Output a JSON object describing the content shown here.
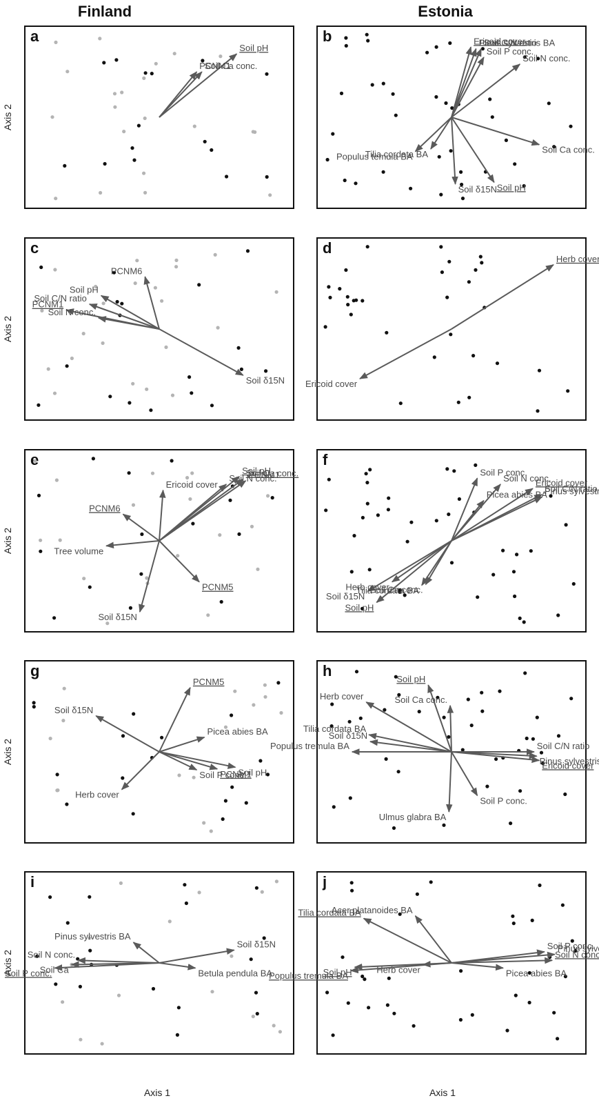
{
  "headers": {
    "left": "Finland",
    "right": "Estonia"
  },
  "axis_labels": {
    "y": "Axis 2",
    "x": "Axis 1"
  },
  "colors": {
    "arrow": "#5a5a5a",
    "label": "#4a4a4a",
    "dot_dark": "#111111",
    "dot_light": "#b4b4b4",
    "frame": "#111111"
  },
  "chart_data": [
    {
      "type": "scatter",
      "letter": "a",
      "country": "Finland",
      "xlim": [
        -1,
        1
      ],
      "ylim": [
        -1,
        1
      ],
      "arrows": [
        {
          "label": "Soil pH",
          "underline": true,
          "x": 0.6,
          "y": 0.74
        },
        {
          "label": "PCNM1",
          "underline": false,
          "x": 0.29,
          "y": 0.53
        },
        {
          "label": "Soil Ca conc.",
          "underline": false,
          "x": 0.33,
          "y": 0.53
        }
      ]
    },
    {
      "type": "scatter",
      "letter": "b",
      "country": "Estonia",
      "xlim": [
        -1,
        1
      ],
      "ylim": [
        -1,
        1
      ],
      "arrows": [
        {
          "label": "Ericoid cover",
          "underline": true,
          "x": 0.15,
          "y": 0.82
        },
        {
          "label": "Pinus sylvestris BA",
          "underline": false,
          "x": 0.19,
          "y": 0.8
        },
        {
          "label": "Soil C/N ratio",
          "underline": false,
          "x": 0.23,
          "y": 0.8
        },
        {
          "label": "Soil P conc.",
          "underline": false,
          "x": 0.25,
          "y": 0.7
        },
        {
          "label": "Soil N conc.",
          "underline": false,
          "x": 0.53,
          "y": 0.62
        },
        {
          "label": "Soil Ca conc.",
          "underline": false,
          "x": 0.68,
          "y": -0.32
        },
        {
          "label": "Soil pH",
          "underline": true,
          "x": 0.33,
          "y": -0.76
        },
        {
          "label": "Soil δ15N",
          "underline": false,
          "x": 0.03,
          "y": -0.78
        },
        {
          "label": "Tilia cordata BA",
          "underline": false,
          "x": -0.16,
          "y": -0.37
        },
        {
          "label": "Populus temula BA",
          "underline": false,
          "x": -0.28,
          "y": -0.4
        }
      ]
    },
    {
      "type": "scatter",
      "letter": "c",
      "country": "Finland",
      "xlim": [
        -1,
        1
      ],
      "ylim": [
        -1,
        1
      ],
      "arrows": [
        {
          "label": "PCNM6",
          "underline": false,
          "x": -0.11,
          "y": 0.61
        },
        {
          "label": "Soil pH",
          "underline": false,
          "x": -0.45,
          "y": 0.39
        },
        {
          "label": "Soil C/N ratio",
          "underline": false,
          "x": -0.54,
          "y": 0.29
        },
        {
          "label": "PCNM1",
          "underline": true,
          "x": -0.72,
          "y": 0.22
        },
        {
          "label": "Soil N conc.",
          "underline": false,
          "x": -0.47,
          "y": 0.13
        },
        {
          "label": "Soil δ15N",
          "underline": false,
          "x": 0.65,
          "y": -0.54
        }
      ]
    },
    {
      "type": "scatter",
      "letter": "d",
      "country": "Estonia",
      "xlim": [
        -1,
        1
      ],
      "ylim": [
        -1,
        1
      ],
      "arrows": [
        {
          "label": "Herb cover",
          "underline": true,
          "x": 0.79,
          "y": 0.75
        },
        {
          "label": "Ericoid cover",
          "underline": false,
          "x": -0.71,
          "y": -0.58
        }
      ]
    },
    {
      "type": "scatter",
      "letter": "e",
      "country": "Finland",
      "xlim": [
        -1,
        1
      ],
      "ylim": [
        -1,
        1
      ],
      "arrows": [
        {
          "label": "Ericoid cover",
          "underline": false,
          "x": 0.03,
          "y": 0.59
        },
        {
          "label": "Soil N conc.",
          "underline": false,
          "x": 0.52,
          "y": 0.66
        },
        {
          "label": "Soil pH",
          "underline": true,
          "x": 0.62,
          "y": 0.75
        },
        {
          "label": "Soil Ca conc.",
          "underline": true,
          "x": 0.65,
          "y": 0.72
        },
        {
          "label": "PCNM1",
          "underline": false,
          "x": 0.67,
          "y": 0.7
        },
        {
          "label": "PCNM6",
          "underline": true,
          "x": -0.28,
          "y": 0.31
        },
        {
          "label": "Tree volume",
          "underline": false,
          "x": -0.41,
          "y": -0.06
        },
        {
          "label": "PCNM5",
          "underline": true,
          "x": 0.31,
          "y": -0.48
        },
        {
          "label": "Soil δ15N",
          "underline": false,
          "x": -0.15,
          "y": -0.83
        }
      ]
    },
    {
      "type": "scatter",
      "letter": "f",
      "country": "Estonia",
      "xlim": [
        -1,
        1
      ],
      "ylim": [
        -1,
        1
      ],
      "arrows": [
        {
          "label": "Soil P conc.",
          "underline": false,
          "x": 0.2,
          "y": 0.73
        },
        {
          "label": "Soil N conc.",
          "underline": false,
          "x": 0.38,
          "y": 0.66
        },
        {
          "label": "Ericoid cover",
          "underline": true,
          "x": 0.63,
          "y": 0.61
        },
        {
          "label": "Soil C/N ratio",
          "underline": false,
          "x": 0.7,
          "y": 0.54
        },
        {
          "label": "Pinus sylvestris BA",
          "underline": false,
          "x": 0.7,
          "y": 0.51
        },
        {
          "label": "Picea abies BA",
          "underline": false,
          "x": 0.25,
          "y": 0.47
        },
        {
          "label": "Herb cover",
          "underline": false,
          "x": -0.46,
          "y": -0.48
        },
        {
          "label": "Soil δ15N",
          "underline": false,
          "x": -0.65,
          "y": -0.59
        },
        {
          "label": "Soil pH",
          "underline": true,
          "x": -0.58,
          "y": -0.72
        },
        {
          "label": "Soil Ca conc.",
          "underline": false,
          "x": -0.2,
          "y": -0.51
        },
        {
          "label": "Tilia cordata BA",
          "underline": false,
          "x": -0.23,
          "y": -0.52
        }
      ]
    },
    {
      "type": "scatter",
      "letter": "g",
      "country": "Finland",
      "xlim": [
        -1,
        1
      ],
      "ylim": [
        -1,
        1
      ],
      "arrows": [
        {
          "label": "PCNM5",
          "underline": true,
          "x": 0.24,
          "y": 0.75
        },
        {
          "label": "Soil δ15N",
          "underline": false,
          "x": -0.49,
          "y": 0.42
        },
        {
          "label": "Picea abies BA",
          "underline": false,
          "x": 0.35,
          "y": 0.17
        },
        {
          "label": "Soil pH",
          "underline": false,
          "x": 0.59,
          "y": -0.18
        },
        {
          "label": "PCNM1",
          "underline": true,
          "x": 0.45,
          "y": -0.2
        },
        {
          "label": "Soil P conc.",
          "underline": false,
          "x": 0.29,
          "y": -0.21
        },
        {
          "label": "Herb cover",
          "underline": false,
          "x": -0.29,
          "y": -0.44
        }
      ]
    },
    {
      "type": "scatter",
      "letter": "h",
      "country": "Estonia",
      "xlim": [
        -1,
        1
      ],
      "ylim": [
        -1,
        1
      ],
      "arrows": [
        {
          "label": "Soil pH",
          "underline": true,
          "x": -0.18,
          "y": 0.78
        },
        {
          "label": "Soil Ca conc.",
          "underline": false,
          "x": -0.01,
          "y": 0.54
        },
        {
          "label": "Herb cover",
          "underline": false,
          "x": -0.66,
          "y": 0.58
        },
        {
          "label": "Tilia cordata BA",
          "underline": false,
          "x": -0.64,
          "y": 0.2
        },
        {
          "label": "Soil δ15N",
          "underline": false,
          "x": -0.63,
          "y": 0.12
        },
        {
          "label": "Populus tremula BA",
          "underline": false,
          "x": -0.77,
          "y": 0.0
        },
        {
          "label": "Soil C/N ratio",
          "underline": false,
          "x": 0.64,
          "y": 0.0
        },
        {
          "label": "Pinus sylvestris BA",
          "underline": false,
          "x": 0.66,
          "y": -0.05
        },
        {
          "label": "Ericoid cover",
          "underline": true,
          "x": 0.68,
          "y": -0.1
        },
        {
          "label": "Soil P conc.",
          "underline": false,
          "x": 0.2,
          "y": -0.51
        },
        {
          "label": "Ulmus glabra BA",
          "underline": false,
          "x": -0.02,
          "y": -0.7
        }
      ]
    },
    {
      "type": "scatter",
      "letter": "i",
      "country": "Finland",
      "xlim": [
        -1,
        1
      ],
      "ylim": [
        -1,
        1
      ],
      "arrows": [
        {
          "label": "Pinus sylvestris BA",
          "underline": false,
          "x": -0.2,
          "y": 0.24
        },
        {
          "label": "Soil δ15N",
          "underline": false,
          "x": 0.58,
          "y": 0.15
        },
        {
          "label": "Soil N conc.",
          "underline": false,
          "x": -0.63,
          "y": 0.03
        },
        {
          "label": "Soil Ca",
          "underline": false,
          "x": -0.68,
          "y": -0.02
        },
        {
          "label": "Soil P conc.",
          "underline": true,
          "x": -0.81,
          "y": -0.06
        },
        {
          "label": "Betula pendula BA",
          "underline": false,
          "x": 0.28,
          "y": -0.06
        }
      ]
    },
    {
      "type": "scatter",
      "letter": "j",
      "country": "Estonia",
      "xlim": [
        -1,
        1
      ],
      "ylim": [
        -1,
        1
      ],
      "arrows": [
        {
          "label": "Tilia cordata BA",
          "underline": true,
          "x": -0.68,
          "y": 0.52
        },
        {
          "label": "Acer platanoides BA",
          "underline": false,
          "x": -0.28,
          "y": 0.55
        },
        {
          "label": "Soil P conc.",
          "underline": false,
          "x": 0.72,
          "y": 0.13
        },
        {
          "label": "Pinus sylvestris BA",
          "underline": false,
          "x": 0.8,
          "y": 0.1
        },
        {
          "label": "Soil N conc.",
          "underline": true,
          "x": 0.78,
          "y": 0.03
        },
        {
          "label": "Picea abies BA",
          "underline": false,
          "x": 0.4,
          "y": -0.06
        },
        {
          "label": "Herb cover",
          "underline": false,
          "x": -0.22,
          "y": -0.02
        },
        {
          "label": "Soil pH",
          "underline": true,
          "x": -0.75,
          "y": -0.05
        },
        {
          "label": "Populus tremula BA",
          "underline": true,
          "x": -0.78,
          "y": -0.09
        }
      ]
    }
  ]
}
